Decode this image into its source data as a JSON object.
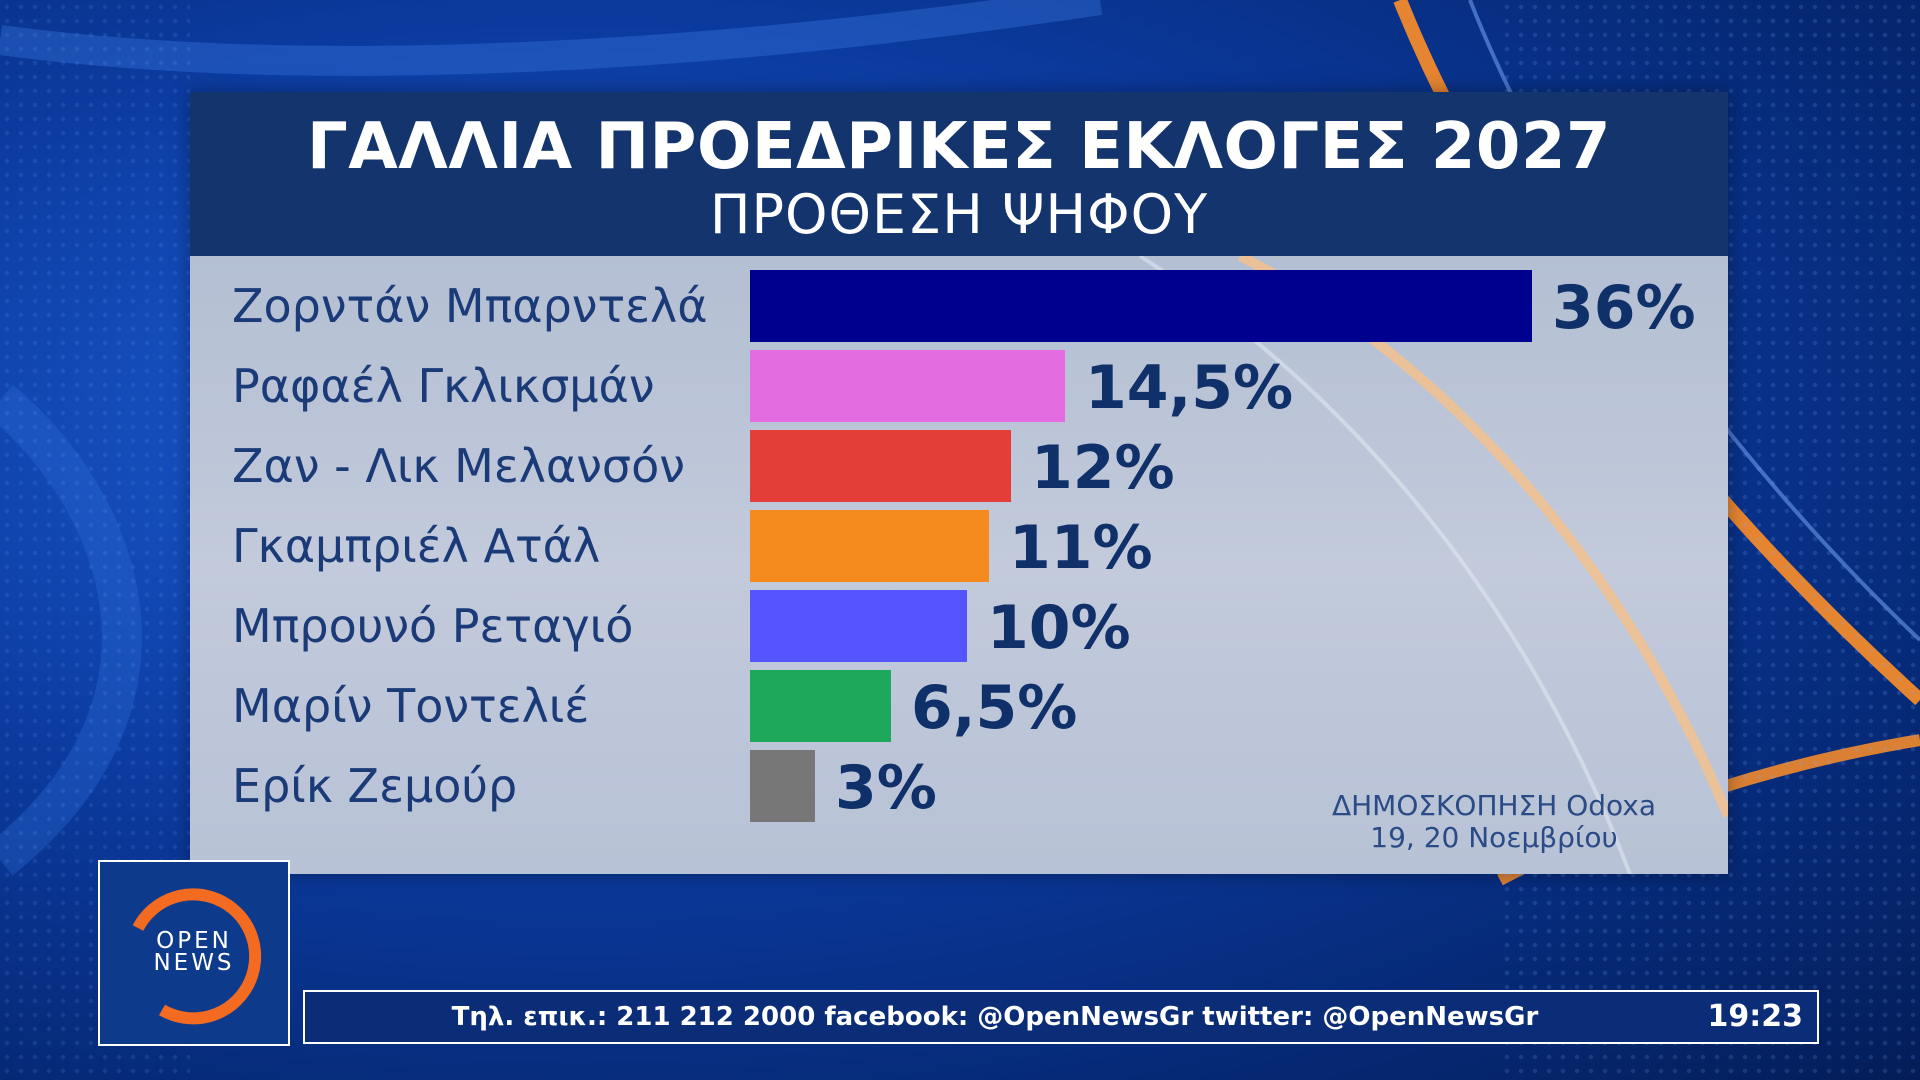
{
  "chart_data": {
    "type": "bar",
    "orientation": "horizontal",
    "title": "ΓΑΛΛΙΑ ΠΡΟΕΔΡΙΚΕΣ ΕΚΛΟΓΕΣ 2027",
    "subtitle": "ΠΡΟΘΕΣΗ ΨΗΦΟΥ",
    "categories": [
      "Ζορντάν Μπαρντελά",
      "Ραφαέλ Γκλικσμάν",
      "Ζαν - Λικ Μελανσόν",
      "Γκαμπριέλ Ατάλ",
      "Μπρουνό Ρεταγιό",
      "Μαρίν Τοντελιέ",
      "Ερίκ Ζεμούρ"
    ],
    "values": [
      36,
      14.5,
      12,
      11,
      10,
      6.5,
      3
    ],
    "value_labels": [
      "36%",
      "14,5%",
      "12%",
      "11%",
      "10%",
      "6,5%",
      "3%"
    ],
    "colors": [
      "#00008f",
      "#e36de0",
      "#e33e38",
      "#f58a1f",
      "#5555ff",
      "#1ea85c",
      "#777777"
    ],
    "xlim": [
      0,
      36
    ],
    "grid": false,
    "legend": "none",
    "source_line1": "ΔΗΜΟΣΚΟΠΗΣΗ Odoxa",
    "source_line2": "19, 20 Νοεμβρίου"
  },
  "logo": {
    "line1": "OPEN",
    "line2": "NEWS",
    "ring_color": "#f26b21"
  },
  "ticker": {
    "text": "Τηλ. επικ.: 211 212 2000 facebook: @OpenNewsGr twitter: @OpenNewsGr",
    "time": "19:23"
  },
  "colors": {
    "header_bg": "#14346e",
    "accent_orange": "#f58a1f"
  }
}
